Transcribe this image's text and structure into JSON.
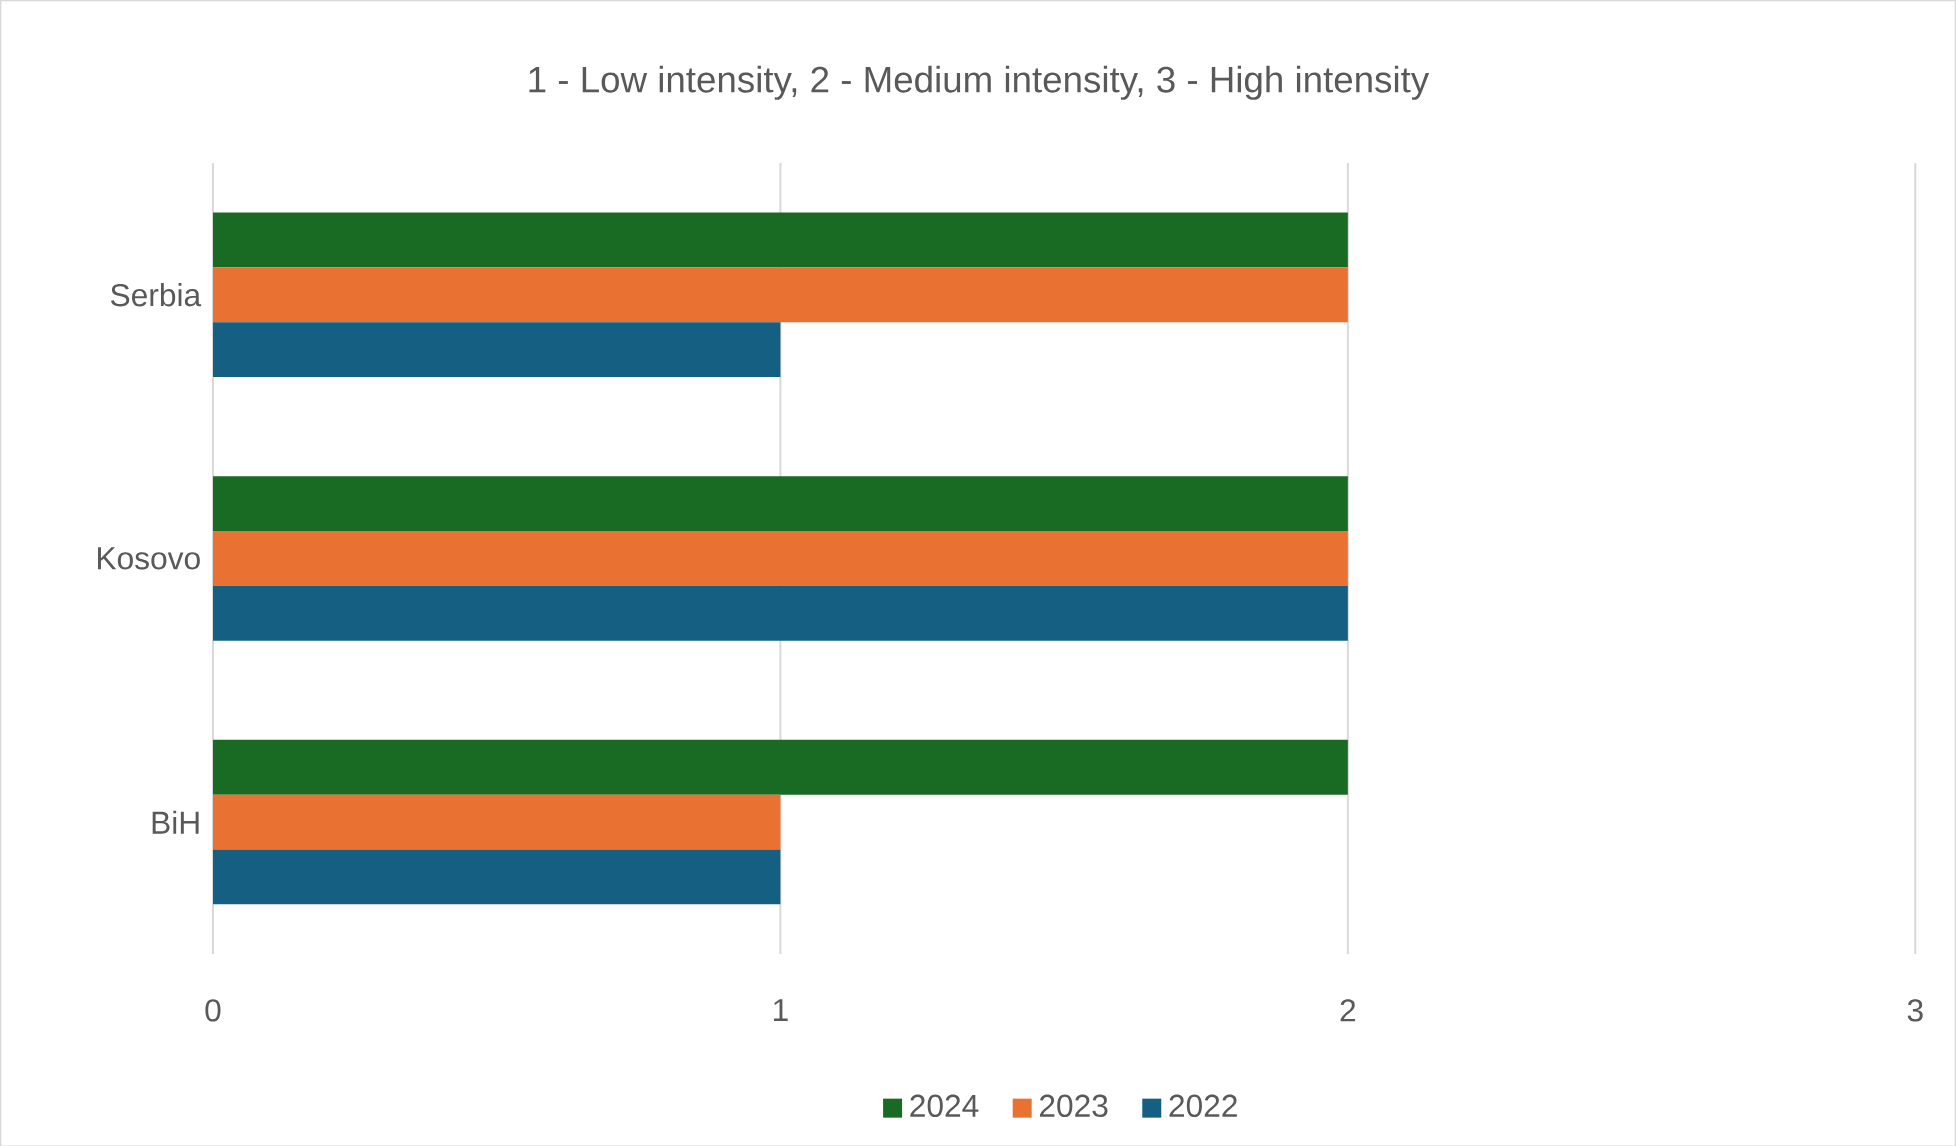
{
  "chart_data": {
    "type": "bar",
    "orientation": "horizontal",
    "title": "1 - Low intensity, 2 - Medium intensity, 3 - High intensity",
    "categories": [
      "Serbia",
      "Kosovo",
      "BiH"
    ],
    "series": [
      {
        "name": "2024",
        "color": "#196b24",
        "values": [
          2,
          2,
          2
        ]
      },
      {
        "name": "2023",
        "color": "#e97132",
        "values": [
          2,
          2,
          1
        ]
      },
      {
        "name": "2022",
        "color": "#156082",
        "values": [
          1,
          2,
          1
        ]
      }
    ],
    "xlim": [
      0,
      3
    ],
    "xticks": [
      0,
      1,
      2,
      3
    ],
    "grid": "x",
    "legend": "bottom"
  }
}
